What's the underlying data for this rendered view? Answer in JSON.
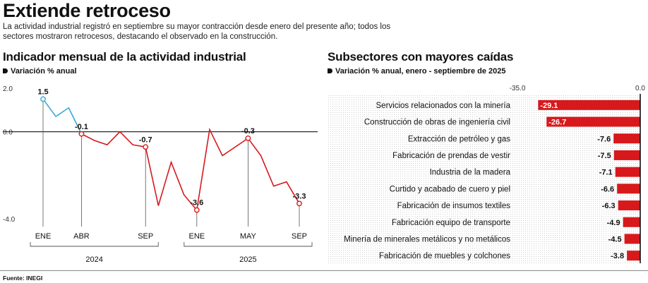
{
  "header": {
    "title": "Extiende retroceso",
    "intro": "La actividad industrial registró en septiembre su mayor contracción desde enero del presente año; todos los sectores mostraron retrocesos, destacando el observado en la construcción."
  },
  "left_panel": {
    "title": "Indicador mensual de la actividad industrial",
    "subtitle": "Variación % anual"
  },
  "right_panel": {
    "title": "Subsectores con mayores caídas",
    "subtitle": "Variación % anual, enero - septiembre de 2025"
  },
  "footer": {
    "source": "Fuente: INEGI"
  },
  "colors": {
    "line_2024_start": "#3aa6d8",
    "line_main": "#d7191c",
    "bar": "#d7191c"
  },
  "chart_data": [
    {
      "type": "line",
      "title": "Indicador mensual de la actividad industrial",
      "ylabel": "Variación % anual",
      "ylim": [
        -4.0,
        2.0
      ],
      "y_ticks": [
        2.0,
        0.0,
        -4.0
      ],
      "y_tick_labels": [
        "2.0",
        "0.0",
        "-4.0"
      ],
      "x": [
        "2024-01",
        "2024-02",
        "2024-03",
        "2024-04",
        "2024-05",
        "2024-06",
        "2024-07",
        "2024-08",
        "2024-09",
        "2024-10",
        "2024-11",
        "2024-12",
        "2025-01",
        "2025-02",
        "2025-03",
        "2025-04",
        "2025-05",
        "2025-06",
        "2025-07",
        "2025-08",
        "2025-09"
      ],
      "values": [
        1.5,
        0.7,
        1.1,
        -0.1,
        -0.4,
        -0.6,
        0.0,
        -0.6,
        -0.7,
        -3.4,
        -1.4,
        -2.9,
        -3.6,
        0.1,
        -1.1,
        -0.7,
        -0.3,
        -1.1,
        -2.5,
        -2.3,
        -3.3
      ],
      "blue_segment_end_index": 3,
      "highlighted": [
        {
          "index": 0,
          "label": "1.5"
        },
        {
          "index": 3,
          "label": "-0.1"
        },
        {
          "index": 8,
          "label": "-0.7"
        },
        {
          "index": 12,
          "label": "-3.6"
        },
        {
          "index": 16,
          "label": "-0.3"
        },
        {
          "index": 20,
          "label": "-3.3"
        }
      ],
      "x_tick_labels": [
        {
          "index": 0,
          "label": "ENE"
        },
        {
          "index": 3,
          "label": "ABR"
        },
        {
          "index": 8,
          "label": "SEP"
        },
        {
          "index": 12,
          "label": "ENE"
        },
        {
          "index": 16,
          "label": "MAY"
        },
        {
          "index": 20,
          "label": "SEP"
        }
      ],
      "year_groups": [
        {
          "label": "2024",
          "from": 0,
          "to": 8
        },
        {
          "label": "2025",
          "from": 12,
          "to": 20
        }
      ],
      "grid": false
    },
    {
      "type": "bar",
      "orientation": "horizontal",
      "title": "Subsectores con mayores caídas",
      "xlabel": "Variación % anual, enero - septiembre de 2025",
      "xlim": [
        -35.0,
        0.0
      ],
      "axis_labels": [
        "-35.0",
        "0.0"
      ],
      "categories": [
        "Servicios relacionados con la minería",
        "Construcción de obras de ingeniería civil",
        "Extracción de petróleo y gas",
        "Fabricación de prendas de vestir",
        "Industria de la madera",
        "Curtido y acabado de cuero y piel",
        "Fabricación de insumos textiles",
        "Fabricación equipo de transporte",
        "Minería de minerales metálicos y no metálicos",
        "Fabricación de muebles y colchones"
      ],
      "values": [
        -29.1,
        -26.7,
        -7.6,
        -7.5,
        -7.1,
        -6.6,
        -6.3,
        -4.9,
        -4.5,
        -3.8
      ],
      "value_labels": [
        "-29.1",
        "-26.7",
        "-7.6",
        "-7.5",
        "-7.1",
        "-6.6",
        "-6.3",
        "-4.9",
        "-4.5",
        "-3.8"
      ]
    }
  ]
}
